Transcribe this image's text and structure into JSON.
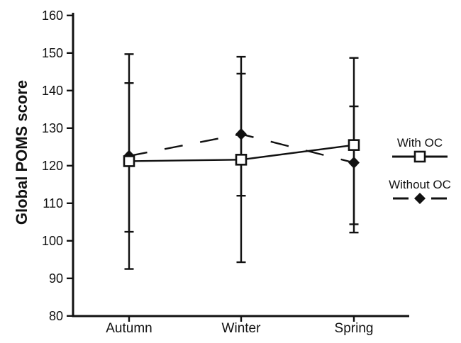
{
  "figure": {
    "background": "#ffffff",
    "ink_color": "#111111"
  },
  "chart_data": {
    "type": "line",
    "title": "",
    "xlabel": "",
    "ylabel": "Global POMS score",
    "categories": [
      "Autumn",
      "Winter",
      "Spring"
    ],
    "ylim": [
      80,
      160
    ],
    "ytick_step": 10,
    "ytick_labels": [
      "80",
      "90",
      "100",
      "110",
      "120",
      "130",
      "140",
      "150",
      "160"
    ],
    "grid": false,
    "legend_position": "right",
    "series": [
      {
        "name": "With OC",
        "line_style": "solid",
        "marker": "open-square",
        "values": [
          121.2,
          121.6,
          125.5
        ],
        "error_upper": [
          149.7,
          149.0,
          148.7
        ],
        "error_lower": [
          92.5,
          94.3,
          102.2
        ]
      },
      {
        "name": "Without OC",
        "line_style": "dashed",
        "marker": "filled-diamond",
        "values": [
          122.6,
          128.4,
          120.8
        ],
        "error_upper": [
          142.0,
          144.5,
          135.8
        ],
        "error_lower": [
          102.4,
          112.0,
          104.4
        ]
      }
    ]
  }
}
